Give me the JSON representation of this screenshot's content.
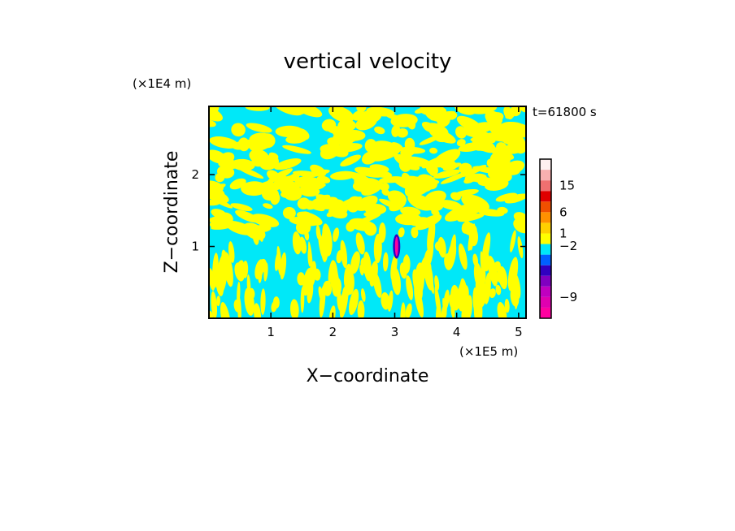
{
  "chart_data": {
    "type": "heatmap",
    "title": "vertical velocity",
    "xlabel": "X−coordinate",
    "ylabel": "Z−coordinate",
    "x_unit": "(×1E5 m)",
    "y_unit": "(×1E4 m)",
    "time_label": "t=61800 s",
    "xlim": [
      0,
      5.12
    ],
    "ylim": [
      0,
      2.95
    ],
    "x_ticks": [
      1,
      2,
      3,
      4,
      5
    ],
    "x_tick_labels": [
      "1",
      "2",
      "3",
      "4",
      "5"
    ],
    "y_ticks": [
      1,
      2
    ],
    "y_tick_labels": [
      "1",
      "2"
    ],
    "field_colors": {
      "negative": "#00e8f8",
      "positive": "#ffff00"
    },
    "anomaly": {
      "x": 3.03,
      "z_center": 1.0,
      "z_half_height": 0.17
    },
    "colorbar": {
      "levels": [
        {
          "color": "#ff00a0"
        },
        {
          "color": "#e000b0"
        },
        {
          "color": "#c000c0"
        },
        {
          "color": "#8000c0"
        },
        {
          "color": "#3000c0"
        },
        {
          "color": "#0060ff"
        },
        {
          "color": "#00e8f8"
        },
        {
          "color": "#ffff00"
        },
        {
          "color": "#ffd000"
        },
        {
          "color": "#ff9000"
        },
        {
          "color": "#f05000"
        },
        {
          "color": "#e00000"
        },
        {
          "color": "#f07070"
        },
        {
          "color": "#f8b0b0"
        },
        {
          "color": "#fff0f0"
        }
      ],
      "labels": [
        {
          "text": "15",
          "index": 12
        },
        {
          "text": "6",
          "index": 9.5
        },
        {
          "text": "1",
          "index": 7.5
        },
        {
          "text": "−2",
          "index": 6.3
        },
        {
          "text": "−9",
          "index": 1.5
        }
      ]
    }
  }
}
